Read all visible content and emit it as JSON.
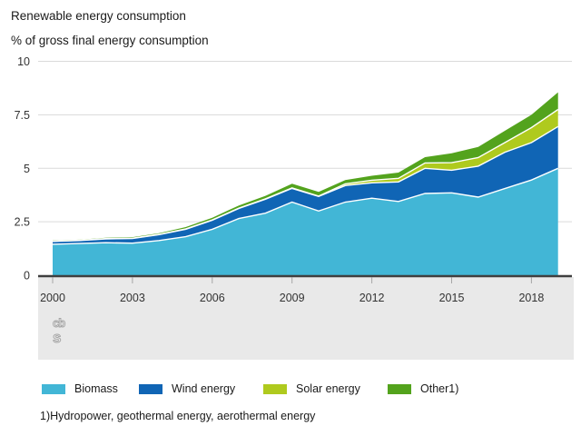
{
  "page": {
    "title": "Renewable energy consumption",
    "subtitle": "% of gross final energy consumption",
    "footnote": "1)Hydropower, geothermal energy, aerothermal energy"
  },
  "logo": {
    "name": "cbs-logo",
    "top": "cb",
    "bottom": "s"
  },
  "colors": {
    "biomass": "#42B6D6",
    "wind": "#1065B5",
    "solar": "#AFCA1E",
    "other": "#53A31D",
    "axis_line": "#3F3F3F",
    "gridline": "#DADADA",
    "tick": "#A6A6A6",
    "band_background": "#E9E9E9",
    "text": "#1A1A1A",
    "tick_label": "#333333",
    "separator": "#FFFFFF",
    "logo": "#A3A3A3"
  },
  "chart_data": {
    "type": "area",
    "stacked": true,
    "title": "Renewable energy consumption",
    "ylabel": "% of gross final energy consumption",
    "x": [
      2000,
      2001,
      2002,
      2003,
      2004,
      2005,
      2006,
      2007,
      2008,
      2009,
      2010,
      2011,
      2012,
      2013,
      2014,
      2015,
      2016,
      2017,
      2018,
      2019
    ],
    "series": [
      {
        "name": "Biomass",
        "color": "#42B6D6",
        "values": [
          1.45,
          1.48,
          1.52,
          1.5,
          1.62,
          1.8,
          2.15,
          2.65,
          2.9,
          3.42,
          3.0,
          3.42,
          3.6,
          3.45,
          3.82,
          3.85,
          3.65,
          4.05,
          4.45,
          5.0
        ]
      },
      {
        "name": "Wind energy",
        "color": "#1065B5",
        "values": [
          0.13,
          0.14,
          0.18,
          0.22,
          0.28,
          0.35,
          0.42,
          0.47,
          0.65,
          0.64,
          0.68,
          0.77,
          0.72,
          0.91,
          1.18,
          1.06,
          1.45,
          1.7,
          1.75,
          1.95
        ]
      },
      {
        "name": "Solar energy",
        "color": "#AFCA1E",
        "values": [
          0.01,
          0.01,
          0.01,
          0.01,
          0.01,
          0.01,
          0.01,
          0.02,
          0.02,
          0.02,
          0.02,
          0.08,
          0.12,
          0.17,
          0.25,
          0.35,
          0.4,
          0.45,
          0.7,
          0.8
        ]
      },
      {
        "name": "Other1)",
        "color": "#53A31D",
        "values": [
          0.03,
          0.03,
          0.04,
          0.05,
          0.05,
          0.09,
          0.11,
          0.12,
          0.14,
          0.2,
          0.2,
          0.18,
          0.21,
          0.27,
          0.27,
          0.44,
          0.5,
          0.55,
          0.6,
          0.8
        ]
      }
    ],
    "ylim": [
      0,
      10
    ],
    "yticks": [
      0,
      2.5,
      5,
      7.5,
      10
    ],
    "xticks": [
      2000,
      2003,
      2006,
      2009,
      2012,
      2015,
      2018
    ],
    "grid": true,
    "legend_position": "bottom",
    "footnote": "1)Hydropower, geothermal energy, aerothermal energy"
  }
}
